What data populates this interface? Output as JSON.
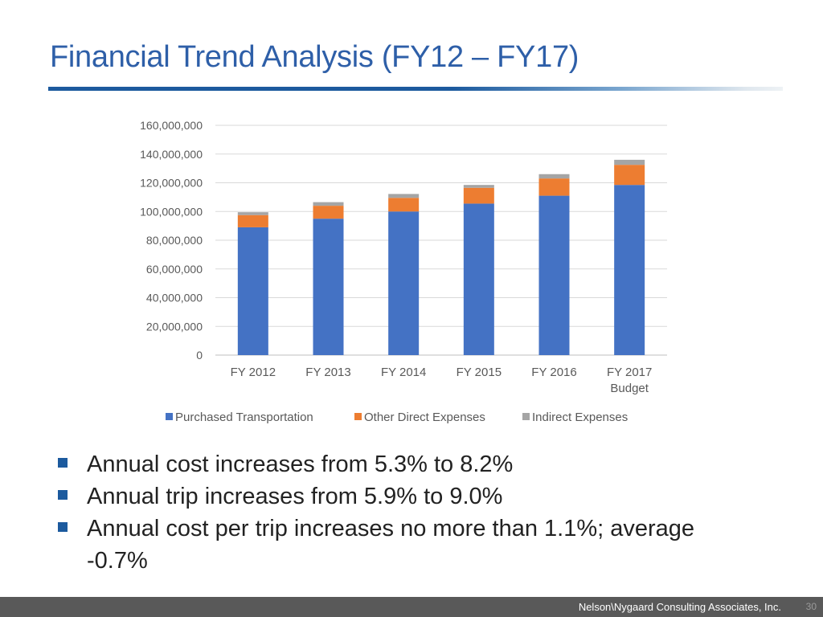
{
  "slide": {
    "title": "Financial Trend Analysis (FY12 – FY17)"
  },
  "chart_data": {
    "type": "bar",
    "stacked": true,
    "categories": [
      "FY 2012",
      "FY 2013",
      "FY 2014",
      "FY 2015",
      "FY 2016",
      "FY 2017 Budget"
    ],
    "series": [
      {
        "name": "Purchased Transportation",
        "color": "#4472c4",
        "values": [
          89000000,
          95000000,
          100000000,
          105500000,
          111000000,
          118500000
        ]
      },
      {
        "name": "Other Direct Expenses",
        "color": "#ed7d31",
        "values": [
          8500000,
          9000000,
          9500000,
          11000000,
          12000000,
          14000000
        ]
      },
      {
        "name": "Indirect Expenses",
        "color": "#a5a5a5",
        "values": [
          2000000,
          2500000,
          2700000,
          2000000,
          3000000,
          3500000
        ]
      }
    ],
    "yticks": [
      "0",
      "20,000,000",
      "40,000,000",
      "60,000,000",
      "80,000,000",
      "100,000,000",
      "120,000,000",
      "140,000,000",
      "160,000,000"
    ],
    "ylim": [
      0,
      160000000
    ],
    "ytick_step": 20000000,
    "title": "",
    "xlabel": "",
    "ylabel": "",
    "legend_position": "bottom",
    "grid": true
  },
  "bullets": [
    "Annual cost increases from 5.3% to 8.2%",
    "Annual trip increases from 5.9% to 9.0%",
    "Annual cost per trip increases no more than 1.1%; average -0.7%"
  ],
  "footer": {
    "company": "Nelson\\Nygaard Consulting Associates, Inc.",
    "page_number": "30"
  }
}
